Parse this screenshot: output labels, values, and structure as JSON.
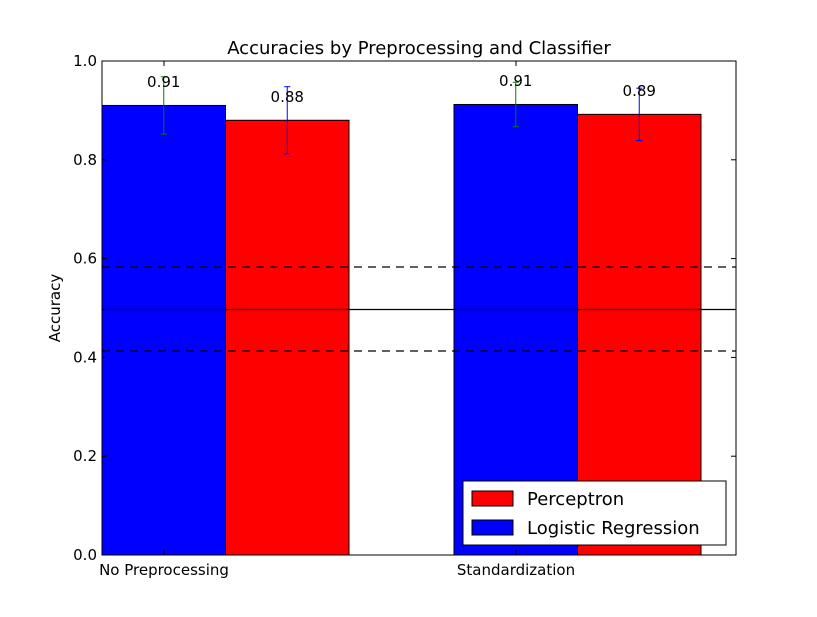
{
  "chart_data": {
    "type": "bar",
    "title": "Accuracies by Preprocessing and Classifier",
    "xlabel": "",
    "ylabel": "Accuracy",
    "categories": [
      "No Preprocessing",
      "Standardization"
    ],
    "ylim": [
      0.0,
      1.0
    ],
    "yticks": [
      "0.0",
      "0.2",
      "0.4",
      "0.6",
      "0.8",
      "1.0"
    ],
    "grid": false,
    "legend_position": "lower-right",
    "series": [
      {
        "name": "Logistic Regression",
        "color": "#0000ff",
        "errorbar_color": "#008000",
        "values": [
          0.91,
          0.912
        ],
        "error": [
          0.058,
          0.045
        ],
        "labels": [
          "0.91",
          "0.91"
        ]
      },
      {
        "name": "Perceptron",
        "color": "#ff0000",
        "errorbar_color": "#0000ff",
        "values": [
          0.88,
          0.892
        ],
        "error": [
          0.068,
          0.053
        ],
        "labels": [
          "0.88",
          "0.89"
        ]
      }
    ],
    "reference_lines": [
      {
        "value": 0.497,
        "style": "solid"
      },
      {
        "value": 0.583,
        "style": "dashed"
      },
      {
        "value": 0.413,
        "style": "dashed"
      }
    ]
  }
}
